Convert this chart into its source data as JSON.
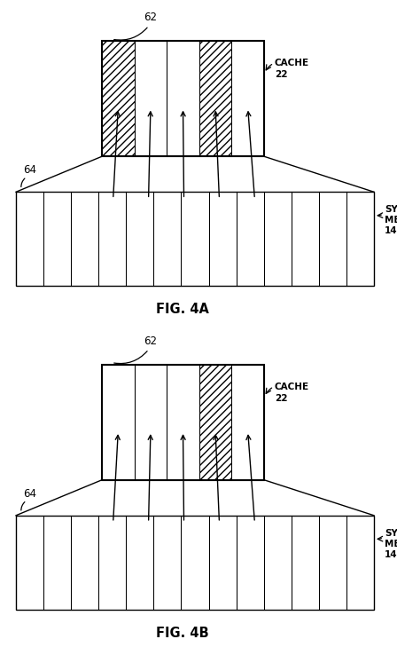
{
  "fig_width": 4.48,
  "fig_height": 7.29,
  "bg_color": "#ffffff",
  "line_color": "#000000",
  "panels": [
    {
      "label": "FIG. 4A",
      "cache_hatch_cols": [
        0,
        3
      ],
      "n_cache_cols": 5,
      "n_mem_cols": 13
    },
    {
      "label": "FIG. 4B",
      "cache_hatch_cols": [
        3
      ],
      "n_cache_cols": 5,
      "n_mem_cols": 13
    }
  ]
}
